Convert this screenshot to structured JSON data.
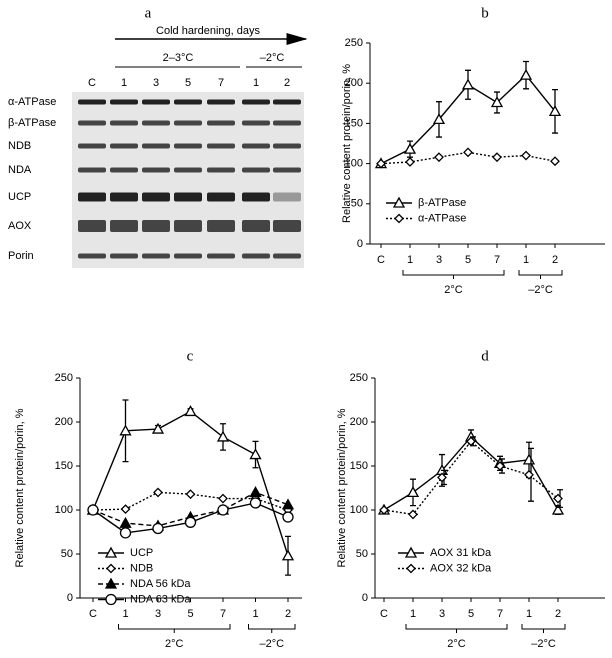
{
  "blot": {
    "label": "a",
    "header": "Cold hardening, days",
    "conditions": [
      "2–3°C",
      "–2°C"
    ],
    "lanes": [
      "C",
      "1",
      "3",
      "5",
      "7",
      "1",
      "2"
    ],
    "rows": [
      "α-ATPase",
      "β-ATPase",
      "NDB",
      "NDA",
      "UCP",
      "AOX",
      "Porin"
    ]
  },
  "chart_data": [
    {
      "type": "line",
      "label": "b",
      "y_label": "Relative content protein/porin, %",
      "categories": [
        "C",
        "1",
        "3",
        "5",
        "7",
        "1",
        "2"
      ],
      "groups": [
        {
          "label": "2°C",
          "start": 1,
          "end": 4
        },
        {
          "label": "–2°C",
          "start": 5,
          "end": 6
        }
      ],
      "ylim": [
        0,
        250
      ],
      "yticks": [
        0,
        50,
        100,
        150,
        200,
        250
      ],
      "series": [
        {
          "name": "β-ATPase",
          "color": "#000000",
          "marker": "triangle",
          "line": "solid",
          "values": [
            100,
            118,
            155,
            198,
            176,
            210,
            165
          ],
          "errors": [
            0,
            10,
            22,
            18,
            13,
            17,
            27
          ]
        },
        {
          "name": "α-ATPase",
          "color": "#000000",
          "marker": "diamond",
          "line": "dotted",
          "values": [
            100,
            102,
            108,
            114,
            108,
            110,
            103
          ]
        }
      ]
    },
    {
      "type": "line",
      "label": "c",
      "y_label": "Relative content protein/porin, %",
      "categories": [
        "C",
        "1",
        "3",
        "5",
        "7",
        "1",
        "2"
      ],
      "groups": [
        {
          "label": "2°C",
          "start": 1,
          "end": 4
        },
        {
          "label": "–2°C",
          "start": 5,
          "end": 6
        }
      ],
      "ylim": [
        0,
        250
      ],
      "yticks": [
        0,
        50,
        100,
        150,
        200,
        250
      ],
      "series": [
        {
          "name": "UCP",
          "color": "#000000",
          "marker": "triangle",
          "line": "solid",
          "values": [
            100,
            190,
            192,
            212,
            183,
            163,
            48
          ],
          "errors": [
            0,
            35,
            4,
            3,
            15,
            15,
            22
          ]
        },
        {
          "name": "NDB",
          "color": "#000000",
          "marker": "diamond",
          "line": "dotted",
          "values": [
            100,
            101,
            120,
            118,
            113,
            113,
            100
          ]
        },
        {
          "name": "NDA 56 kDa",
          "color": "#000000",
          "marker": "filled-triangle",
          "line": "dashed",
          "values": [
            100,
            85,
            82,
            92,
            100,
            120,
            106
          ]
        },
        {
          "name": "NDA 63 kDa",
          "color": "#000000",
          "marker": "circle",
          "line": "solid",
          "values": [
            100,
            74,
            79,
            86,
            100,
            108,
            92
          ]
        }
      ]
    },
    {
      "type": "line",
      "label": "d",
      "y_label": "Relative content protein/porin, %",
      "categories": [
        "C",
        "1",
        "3",
        "5",
        "7",
        "1",
        "2"
      ],
      "groups": [
        {
          "label": "2°C",
          "start": 1,
          "end": 4
        },
        {
          "label": "–2°C",
          "start": 5,
          "end": 6
        }
      ],
      "ylim": [
        0,
        250
      ],
      "yticks": [
        0,
        50,
        100,
        150,
        200,
        250
      ],
      "series": [
        {
          "name": "AOX 31 kDa",
          "color": "#000000",
          "marker": "triangle",
          "line": "solid",
          "values": [
            100,
            120,
            145,
            183,
            153,
            157,
            100
          ],
          "errors": [
            0,
            15,
            18,
            8,
            8,
            20,
            5
          ]
        },
        {
          "name": "AOX 32 kDa",
          "color": "#000000",
          "marker": "diamond",
          "line": "dotted",
          "values": [
            100,
            95,
            137,
            178,
            150,
            140,
            113
          ],
          "errors": [
            0,
            0,
            8,
            5,
            8,
            30,
            10
          ]
        }
      ]
    }
  ]
}
